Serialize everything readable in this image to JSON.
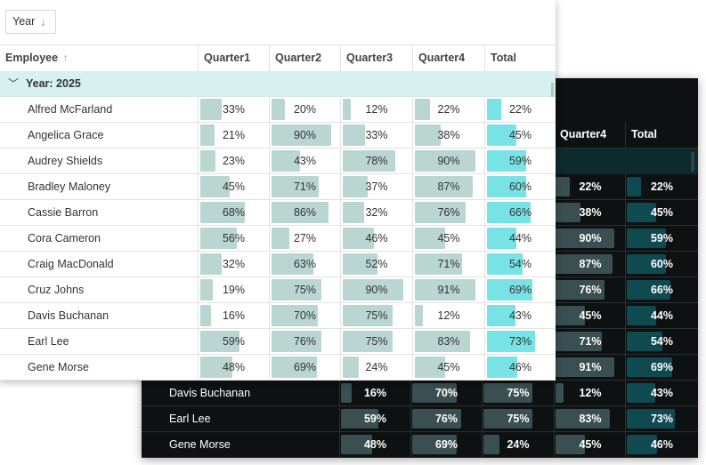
{
  "group_panel": {
    "chip_label": "Year",
    "chip_sort": "↓"
  },
  "columns": {
    "employee": "Employee",
    "employee_sort": "↑",
    "q1": "Quarter1",
    "q2": "Quarter2",
    "q3": "Quarter3",
    "q4": "Quarter4",
    "total": "Total"
  },
  "group_row": {
    "label": "Year: 2025",
    "expander": "﹀"
  },
  "rows": [
    {
      "name": "Alfred McFarland",
      "q1": "33%",
      "q2": "20%",
      "q3": "12%",
      "q4": "22%",
      "total": "22%",
      "v": [
        33,
        20,
        12,
        22,
        22
      ]
    },
    {
      "name": "Angelica Grace",
      "q1": "21%",
      "q2": "90%",
      "q3": "33%",
      "q4": "38%",
      "total": "45%",
      "v": [
        21,
        90,
        33,
        38,
        45
      ]
    },
    {
      "name": "Audrey Shields",
      "q1": "23%",
      "q2": "43%",
      "q3": "78%",
      "q4": "90%",
      "total": "59%",
      "v": [
        23,
        43,
        78,
        90,
        59
      ]
    },
    {
      "name": "Bradley Maloney",
      "q1": "45%",
      "q2": "71%",
      "q3": "37%",
      "q4": "87%",
      "total": "60%",
      "v": [
        45,
        71,
        37,
        87,
        60
      ]
    },
    {
      "name": "Cassie Barron",
      "q1": "68%",
      "q2": "86%",
      "q3": "32%",
      "q4": "76%",
      "total": "66%",
      "v": [
        68,
        86,
        32,
        76,
        66
      ]
    },
    {
      "name": "Cora Cameron",
      "q1": "56%",
      "q2": "27%",
      "q3": "46%",
      "q4": "45%",
      "total": "44%",
      "v": [
        56,
        27,
        46,
        45,
        44
      ]
    },
    {
      "name": "Craig MacDonald",
      "q1": "32%",
      "q2": "63%",
      "q3": "52%",
      "q4": "71%",
      "total": "54%",
      "v": [
        32,
        63,
        52,
        71,
        54
      ]
    },
    {
      "name": "Cruz Johns",
      "q1": "19%",
      "q2": "75%",
      "q3": "90%",
      "q4": "91%",
      "total": "69%",
      "v": [
        19,
        75,
        90,
        91,
        69
      ]
    },
    {
      "name": "Davis Buchanan",
      "q1": "16%",
      "q2": "70%",
      "q3": "75%",
      "q4": "12%",
      "total": "43%",
      "v": [
        16,
        70,
        75,
        12,
        43
      ]
    },
    {
      "name": "Earl Lee",
      "q1": "59%",
      "q2": "76%",
      "q3": "75%",
      "q4": "83%",
      "total": "73%",
      "v": [
        59,
        76,
        75,
        83,
        73
      ]
    },
    {
      "name": "Gene Morse",
      "q1": "48%",
      "q2": "69%",
      "q3": "24%",
      "q4": "45%",
      "total": "46%",
      "v": [
        48,
        69,
        24,
        45,
        46
      ]
    }
  ],
  "dark_columns": {
    "q4": "Quarter4",
    "total": "Total"
  },
  "dark_rows_right": [
    {
      "q4": "22%",
      "total": "22%",
      "v": [
        22,
        22
      ]
    },
    {
      "q4": "38%",
      "total": "45%",
      "v": [
        38,
        45
      ]
    },
    {
      "q4": "90%",
      "total": "59%",
      "v": [
        90,
        59
      ]
    },
    {
      "q4": "87%",
      "total": "60%",
      "v": [
        87,
        60
      ]
    },
    {
      "q4": "76%",
      "total": "66%",
      "v": [
        76,
        66
      ]
    },
    {
      "q4": "45%",
      "total": "44%",
      "v": [
        45,
        44
      ]
    },
    {
      "q4": "71%",
      "total": "54%",
      "v": [
        71,
        54
      ]
    },
    {
      "q4": "91%",
      "total": "69%",
      "v": [
        91,
        69
      ]
    }
  ],
  "dark_rows_full": [
    {
      "name": "Davis Buchanan",
      "q1": "16%",
      "q2": "70%",
      "q3": "75%",
      "q4": "12%",
      "total": "43%",
      "v": [
        16,
        70,
        75,
        12,
        43
      ]
    },
    {
      "name": "Earl Lee",
      "q1": "59%",
      "q2": "76%",
      "q3": "75%",
      "q4": "83%",
      "total": "73%",
      "v": [
        59,
        76,
        75,
        83,
        73
      ]
    },
    {
      "name": "Gene Morse",
      "q1": "48%",
      "q2": "69%",
      "q3": "24%",
      "q4": "45%",
      "total": "46%",
      "v": [
        48,
        69,
        24,
        45,
        46
      ]
    }
  ],
  "colors": {
    "light_bar": "#b9d6d3",
    "light_total_bar": "#78e3e6",
    "light_group_bg": "#d6f1f0",
    "dark_bar": "#3a4f51",
    "dark_total_bar": "#0f4a50",
    "dark_bg": "#0e1112"
  }
}
